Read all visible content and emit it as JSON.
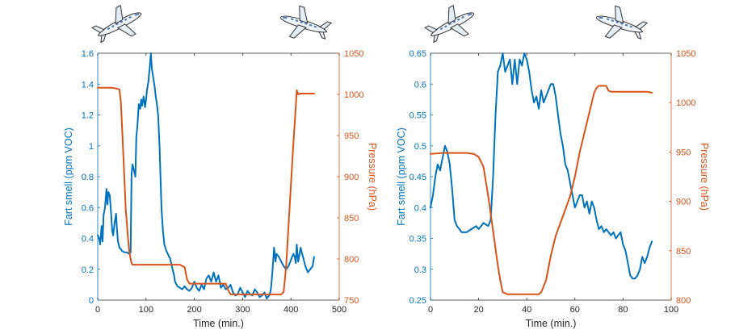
{
  "chart_data": [
    {
      "type": "line",
      "xlabel": "Time (min.)",
      "ylabel_left": "Fart smell (ppm VOC)",
      "ylabel_right": "Pressure (hPa)",
      "xlim": [
        0,
        500
      ],
      "xticks": [
        0,
        100,
        200,
        300,
        400,
        500
      ],
      "ylim_left": [
        0,
        1.6
      ],
      "yticks_left": [
        0,
        0.2,
        0.4,
        0.6,
        0.8,
        1,
        1.2,
        1.4,
        1.6
      ],
      "ylim_right": [
        750,
        1050
      ],
      "yticks_right": [
        750,
        800,
        850,
        900,
        950,
        1000,
        1050
      ],
      "colors": {
        "left": "#0072BD",
        "right": "#D95319"
      },
      "plane_icons": [
        "airplane-takeoff-icon",
        "airplane-landing-icon"
      ],
      "series": [
        {
          "axis": "left",
          "x": [
            0,
            3,
            5,
            8,
            10,
            12,
            15,
            18,
            20,
            22,
            25,
            28,
            30,
            32,
            35,
            38,
            40,
            42,
            45,
            48,
            50,
            55,
            60,
            65,
            68,
            70,
            72,
            75,
            78,
            80,
            82,
            85,
            88,
            90,
            92,
            95,
            98,
            100,
            102,
            105,
            108,
            110,
            112,
            115,
            118,
            120,
            122,
            125,
            128,
            130,
            132,
            135,
            138,
            140,
            142,
            145,
            148,
            150,
            152,
            155,
            158,
            160,
            165,
            170,
            175,
            180,
            185,
            190,
            195,
            200,
            205,
            210,
            215,
            220,
            225,
            230,
            235,
            240,
            245,
            250,
            255,
            260,
            265,
            270,
            275,
            280,
            285,
            290,
            295,
            300,
            305,
            310,
            315,
            320,
            325,
            330,
            335,
            340,
            345,
            350,
            352,
            355,
            358,
            360,
            362,
            365,
            368,
            370,
            375,
            380,
            385,
            390,
            395,
            400,
            405,
            408,
            410,
            412,
            415,
            418,
            420,
            425,
            430,
            435,
            440,
            445,
            448
          ],
          "y": [
            0.42,
            0.4,
            0.36,
            0.48,
            0.38,
            0.55,
            0.6,
            0.72,
            0.62,
            0.7,
            0.68,
            0.55,
            0.45,
            0.42,
            0.5,
            0.56,
            0.45,
            0.38,
            0.34,
            0.33,
            0.32,
            0.31,
            0.31,
            0.3,
            0.31,
            0.82,
            0.88,
            0.84,
            0.8,
            1.06,
            1.12,
            1.27,
            1.24,
            1.3,
            1.26,
            1.32,
            1.25,
            1.3,
            1.36,
            1.42,
            1.52,
            1.6,
            1.5,
            1.44,
            1.38,
            1.32,
            1.28,
            1.2,
            1.0,
            0.8,
            0.6,
            0.45,
            0.36,
            0.34,
            0.32,
            0.3,
            0.28,
            0.27,
            0.24,
            0.2,
            0.16,
            0.12,
            0.09,
            0.08,
            0.07,
            0.09,
            0.07,
            0.06,
            0.08,
            0.12,
            0.08,
            0.06,
            0.1,
            0.07,
            0.14,
            0.16,
            0.12,
            0.18,
            0.12,
            0.16,
            0.08,
            0.1,
            0.07,
            0.08,
            0.1,
            0.05,
            0.03,
            0.04,
            0.08,
            0.05,
            0.02,
            0.06,
            0.04,
            0.03,
            0.07,
            0.05,
            0.02,
            0.03,
            0.05,
            0.01,
            0.02,
            0.03,
            0.06,
            0.12,
            0.2,
            0.34,
            0.25,
            0.3,
            0.28,
            0.25,
            0.22,
            0.2,
            0.22,
            0.26,
            0.3,
            0.28,
            0.24,
            0.36,
            0.25,
            0.3,
            0.34,
            0.28,
            0.22,
            0.18,
            0.2,
            0.22,
            0.28
          ]
        },
        {
          "axis": "right",
          "x": [
            0,
            10,
            20,
            30,
            40,
            45,
            48,
            52,
            55,
            58,
            62,
            65,
            68,
            70,
            72,
            75,
            150,
            170,
            180,
            185,
            190,
            260,
            265,
            270,
            275,
            280,
            370,
            375,
            380,
            385,
            390,
            395,
            400,
            405,
            410,
            412,
            415,
            420,
            425,
            430,
            435,
            440,
            448
          ],
          "y": [
            1008,
            1008,
            1008,
            1008,
            1007,
            1006,
            990,
            940,
            900,
            860,
            830,
            810,
            800,
            795,
            793,
            793,
            793,
            793,
            790,
            775,
            770,
            770,
            770,
            762,
            757,
            757,
            757,
            757,
            757,
            760,
            790,
            840,
            890,
            940,
            985,
            1005,
            1000,
            1001,
            1001,
            1001,
            1001,
            1001,
            1001
          ]
        }
      ]
    },
    {
      "type": "line",
      "xlabel": "Time (min.)",
      "ylabel_left": "Fart smell (ppm VOC)",
      "ylabel_right": "Pressure (hPa)",
      "xlim": [
        0,
        100
      ],
      "xticks": [
        0,
        20,
        40,
        60,
        80,
        100
      ],
      "ylim_left": [
        0.25,
        0.65
      ],
      "yticks_left": [
        0.25,
        0.3,
        0.35,
        0.4,
        0.45,
        0.5,
        0.55,
        0.6,
        0.65
      ],
      "ylim_right": [
        800,
        1050
      ],
      "yticks_right": [
        800,
        850,
        900,
        950,
        1000,
        1050
      ],
      "colors": {
        "left": "#0072BD",
        "right": "#D95319"
      },
      "plane_icons": [
        "airplane-takeoff-icon",
        "airplane-landing-icon"
      ],
      "series": [
        {
          "axis": "left",
          "x": [
            0,
            1,
            2,
            3,
            4,
            5,
            6,
            7,
            8,
            9,
            10,
            11,
            12,
            13,
            15,
            17,
            19,
            20,
            21,
            22,
            24,
            25,
            26,
            27,
            28,
            29,
            30,
            31,
            32,
            33,
            34,
            35,
            36,
            37,
            38,
            39,
            40,
            41,
            42,
            43,
            44,
            45,
            46,
            47,
            48,
            49,
            50,
            51,
            52,
            53,
            54,
            55,
            56,
            57,
            58,
            59,
            60,
            61,
            62,
            63,
            64,
            65,
            66,
            67,
            68,
            69,
            70,
            71,
            72,
            73,
            74,
            75,
            76,
            77,
            78,
            79,
            80,
            81,
            82,
            83,
            84,
            85,
            86,
            87,
            88,
            89,
            90,
            91,
            92
          ],
          "y": [
            0.4,
            0.42,
            0.45,
            0.47,
            0.46,
            0.48,
            0.5,
            0.49,
            0.47,
            0.43,
            0.38,
            0.37,
            0.365,
            0.36,
            0.36,
            0.365,
            0.37,
            0.365,
            0.37,
            0.375,
            0.37,
            0.38,
            0.45,
            0.55,
            0.62,
            0.63,
            0.65,
            0.62,
            0.63,
            0.64,
            0.6,
            0.64,
            0.6,
            0.64,
            0.63,
            0.65,
            0.64,
            0.62,
            0.59,
            0.57,
            0.58,
            0.56,
            0.59,
            0.57,
            0.58,
            0.59,
            0.6,
            0.6,
            0.58,
            0.55,
            0.52,
            0.5,
            0.47,
            0.46,
            0.44,
            0.42,
            0.4,
            0.41,
            0.42,
            0.42,
            0.4,
            0.41,
            0.39,
            0.41,
            0.4,
            0.38,
            0.365,
            0.37,
            0.36,
            0.365,
            0.36,
            0.355,
            0.36,
            0.35,
            0.355,
            0.36,
            0.34,
            0.33,
            0.31,
            0.29,
            0.285,
            0.285,
            0.29,
            0.3,
            0.32,
            0.31,
            0.32,
            0.335,
            0.345
          ]
        },
        {
          "axis": "right",
          "x": [
            0,
            5,
            10,
            15,
            18,
            20,
            22,
            24,
            26,
            28,
            29,
            30,
            32,
            35,
            40,
            45,
            46,
            48,
            50,
            52,
            55,
            58,
            60,
            62,
            65,
            68,
            69,
            70,
            71,
            72,
            73,
            74,
            75,
            76,
            80,
            85,
            90,
            92
          ],
          "y": [
            948,
            949,
            949,
            949,
            948,
            945,
            935,
            905,
            870,
            835,
            820,
            808,
            806,
            806,
            806,
            806,
            808,
            820,
            845,
            865,
            885,
            905,
            925,
            950,
            980,
            1010,
            1015,
            1017,
            1017,
            1017,
            1017,
            1012,
            1011,
            1011,
            1011,
            1011,
            1011,
            1010
          ]
        }
      ]
    }
  ]
}
